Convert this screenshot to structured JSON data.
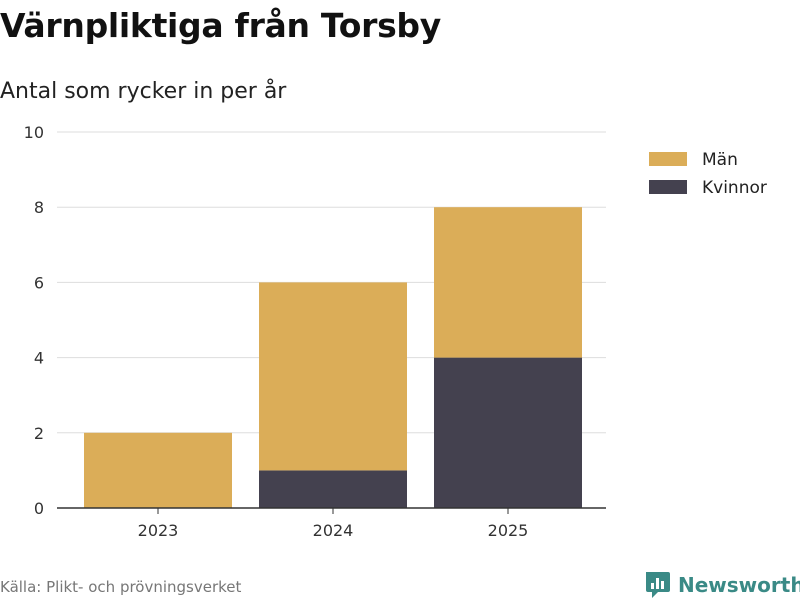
{
  "title": "Värnpliktiga från Torsby",
  "subtitle": "Antal som rycker in per år",
  "source": "Källa: Plikt- och prövningsverket",
  "brand": "Newsworthy",
  "colors": {
    "man": "#dbad58",
    "kvinnor": "#44414f",
    "grid": "#dddddd",
    "axis": "#333333",
    "brand": "#3a8a86"
  },
  "chart_data": {
    "type": "bar",
    "stacked": true,
    "categories": [
      "2023",
      "2024",
      "2025"
    ],
    "series": [
      {
        "name": "Män",
        "values": [
          2,
          5,
          4
        ],
        "color": "#dbad58"
      },
      {
        "name": "Kvinnor",
        "values": [
          0,
          1,
          4
        ],
        "color": "#44414f"
      }
    ],
    "ylim": [
      0,
      10
    ],
    "yticks": [
      0,
      2,
      4,
      6,
      8,
      10
    ],
    "grid": true,
    "legend_position": "top-right"
  }
}
